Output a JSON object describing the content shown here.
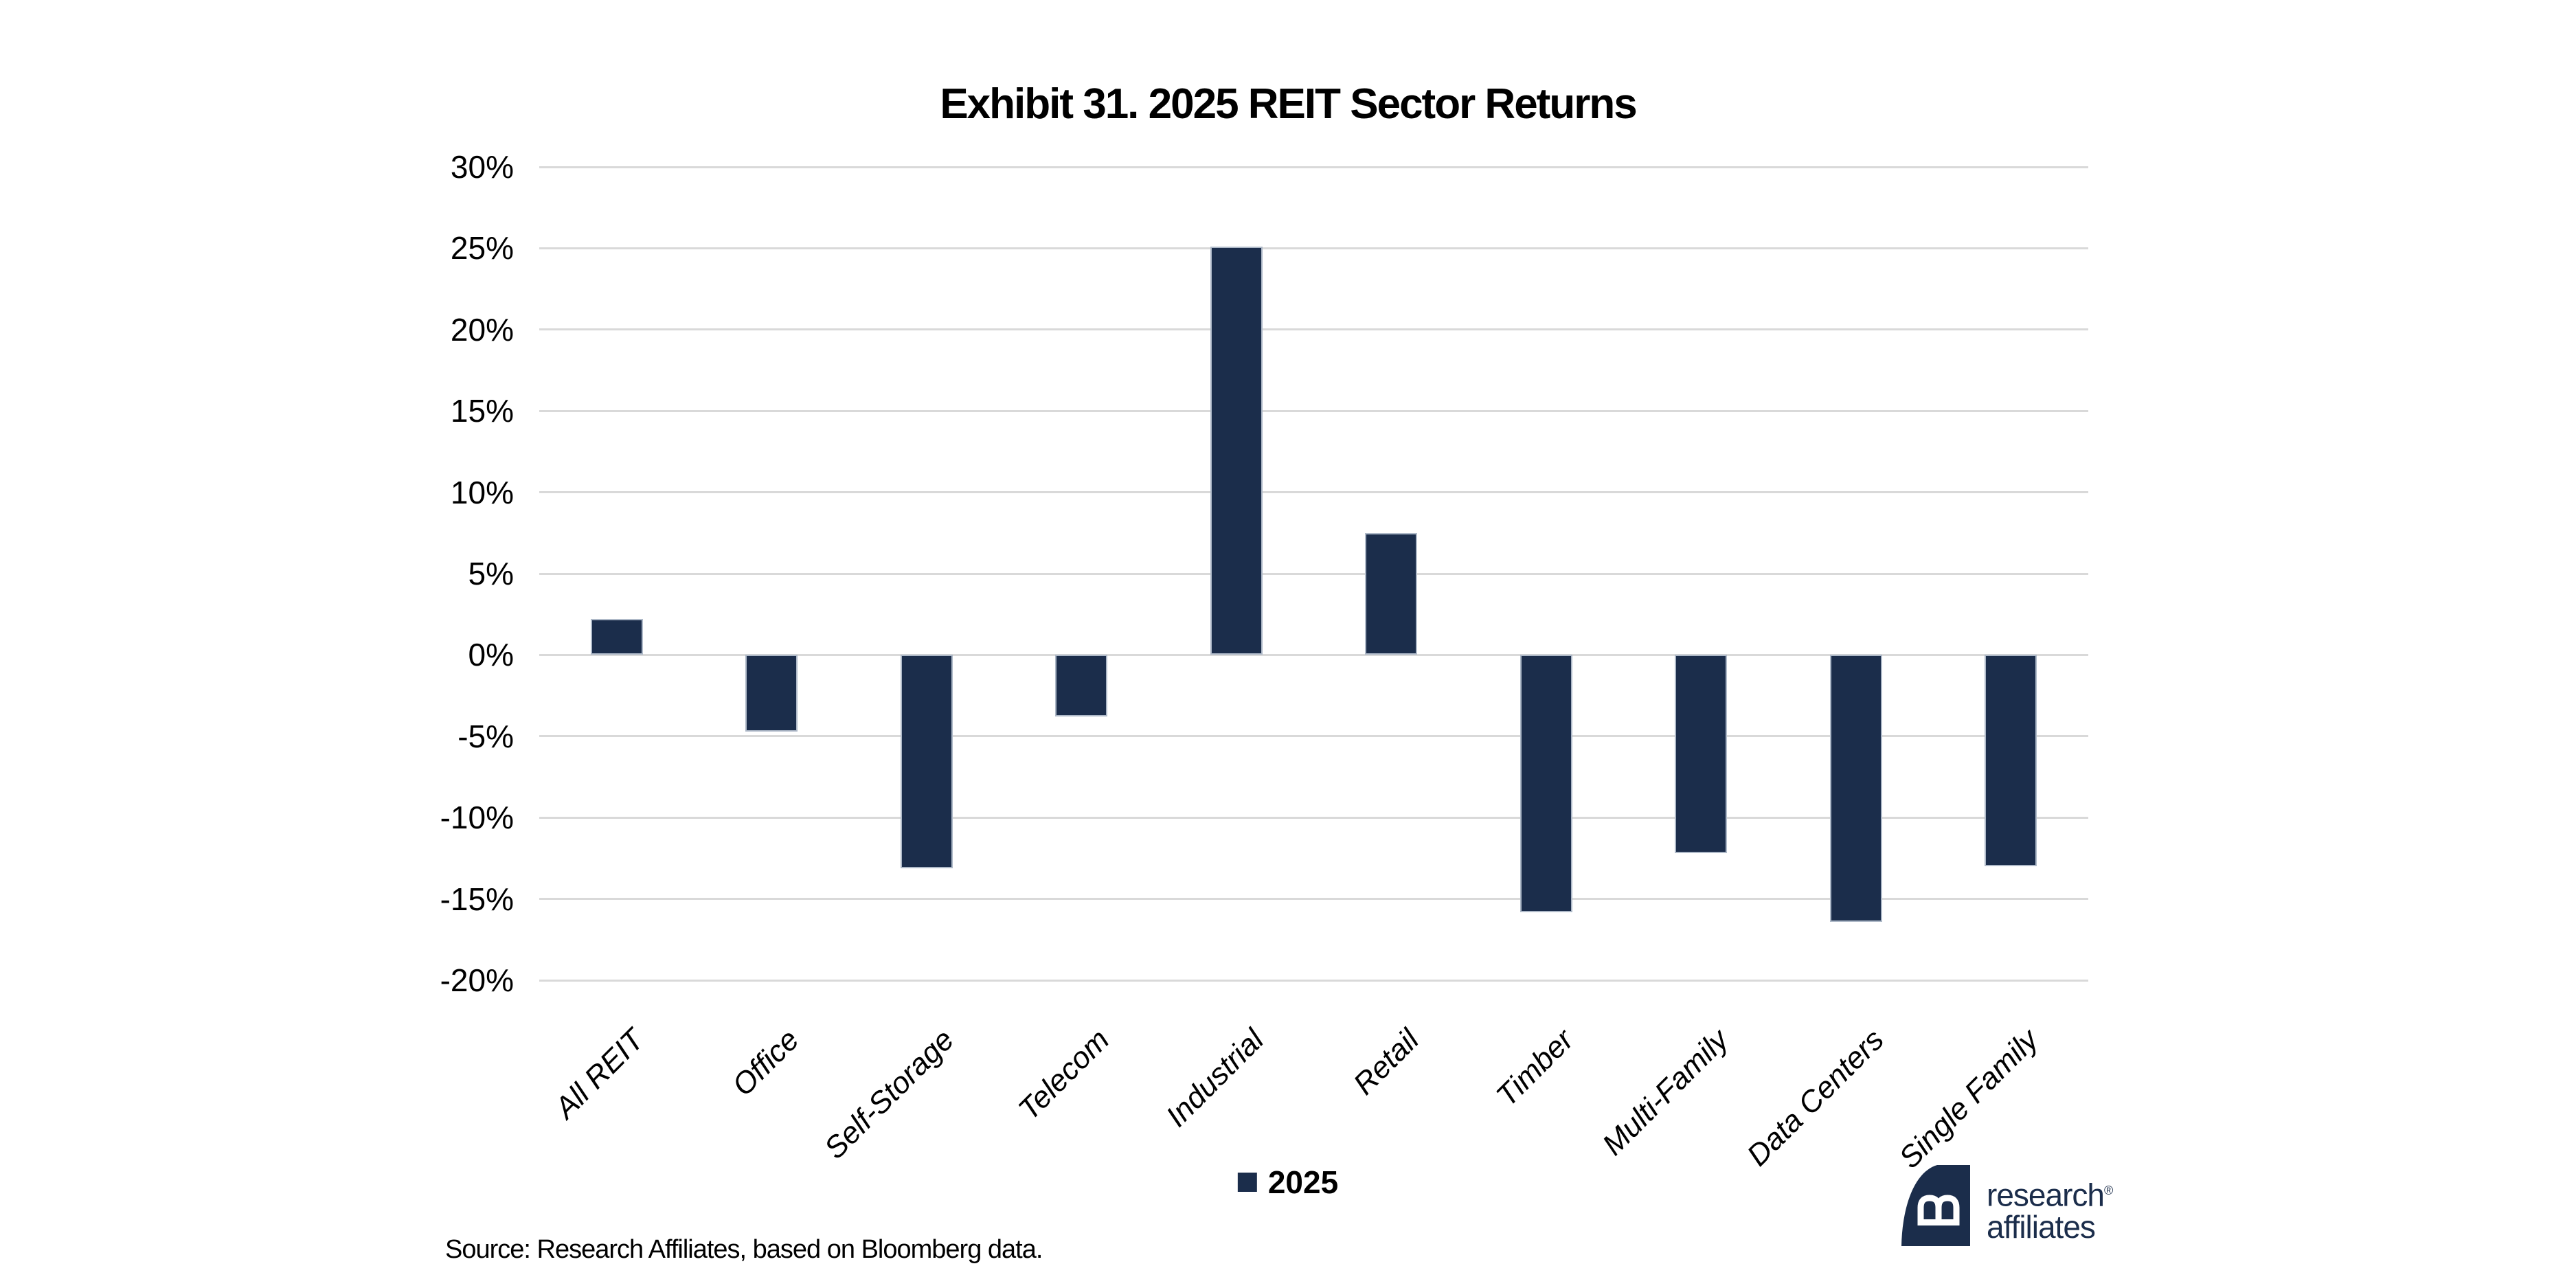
{
  "title": "Exhibit 31. 2025 REIT Sector Returns",
  "source_note": "Source: Research Affiliates, based on Bloomberg data.",
  "legend": {
    "label": "2025"
  },
  "logo": {
    "line1": "research",
    "registered": "®",
    "line2": "affiliates"
  },
  "colors": {
    "bar": "#1b2d4b",
    "bar_border": "#aeb9c8",
    "gridline": "#d9d9d9",
    "navy": "#1b2d4b",
    "text": "#000000"
  },
  "chart_data": {
    "type": "bar",
    "title": "Exhibit 31. 2025 REIT Sector Returns",
    "categories": [
      "All REIT",
      "Office",
      "Self-Storage",
      "Telecom",
      "Industrial",
      "Retail",
      "Timber",
      "Multi-Family",
      "Data Centers",
      "Single Family"
    ],
    "series": [
      {
        "name": "2025",
        "values": [
          2.2,
          -4.7,
          -13.1,
          -3.8,
          25.1,
          7.5,
          -15.8,
          -12.2,
          -16.4,
          -13.0
        ]
      }
    ],
    "xlabel": "",
    "ylabel": "",
    "y_ticks": [
      "30%",
      "25%",
      "20%",
      "15%",
      "10%",
      "5%",
      "0%",
      "-5%",
      "-10%",
      "-15%",
      "-20%"
    ],
    "ylim": [
      -20,
      30
    ],
    "grid": true,
    "legend_position": "bottom",
    "bar_color": "#1b2d4b"
  }
}
